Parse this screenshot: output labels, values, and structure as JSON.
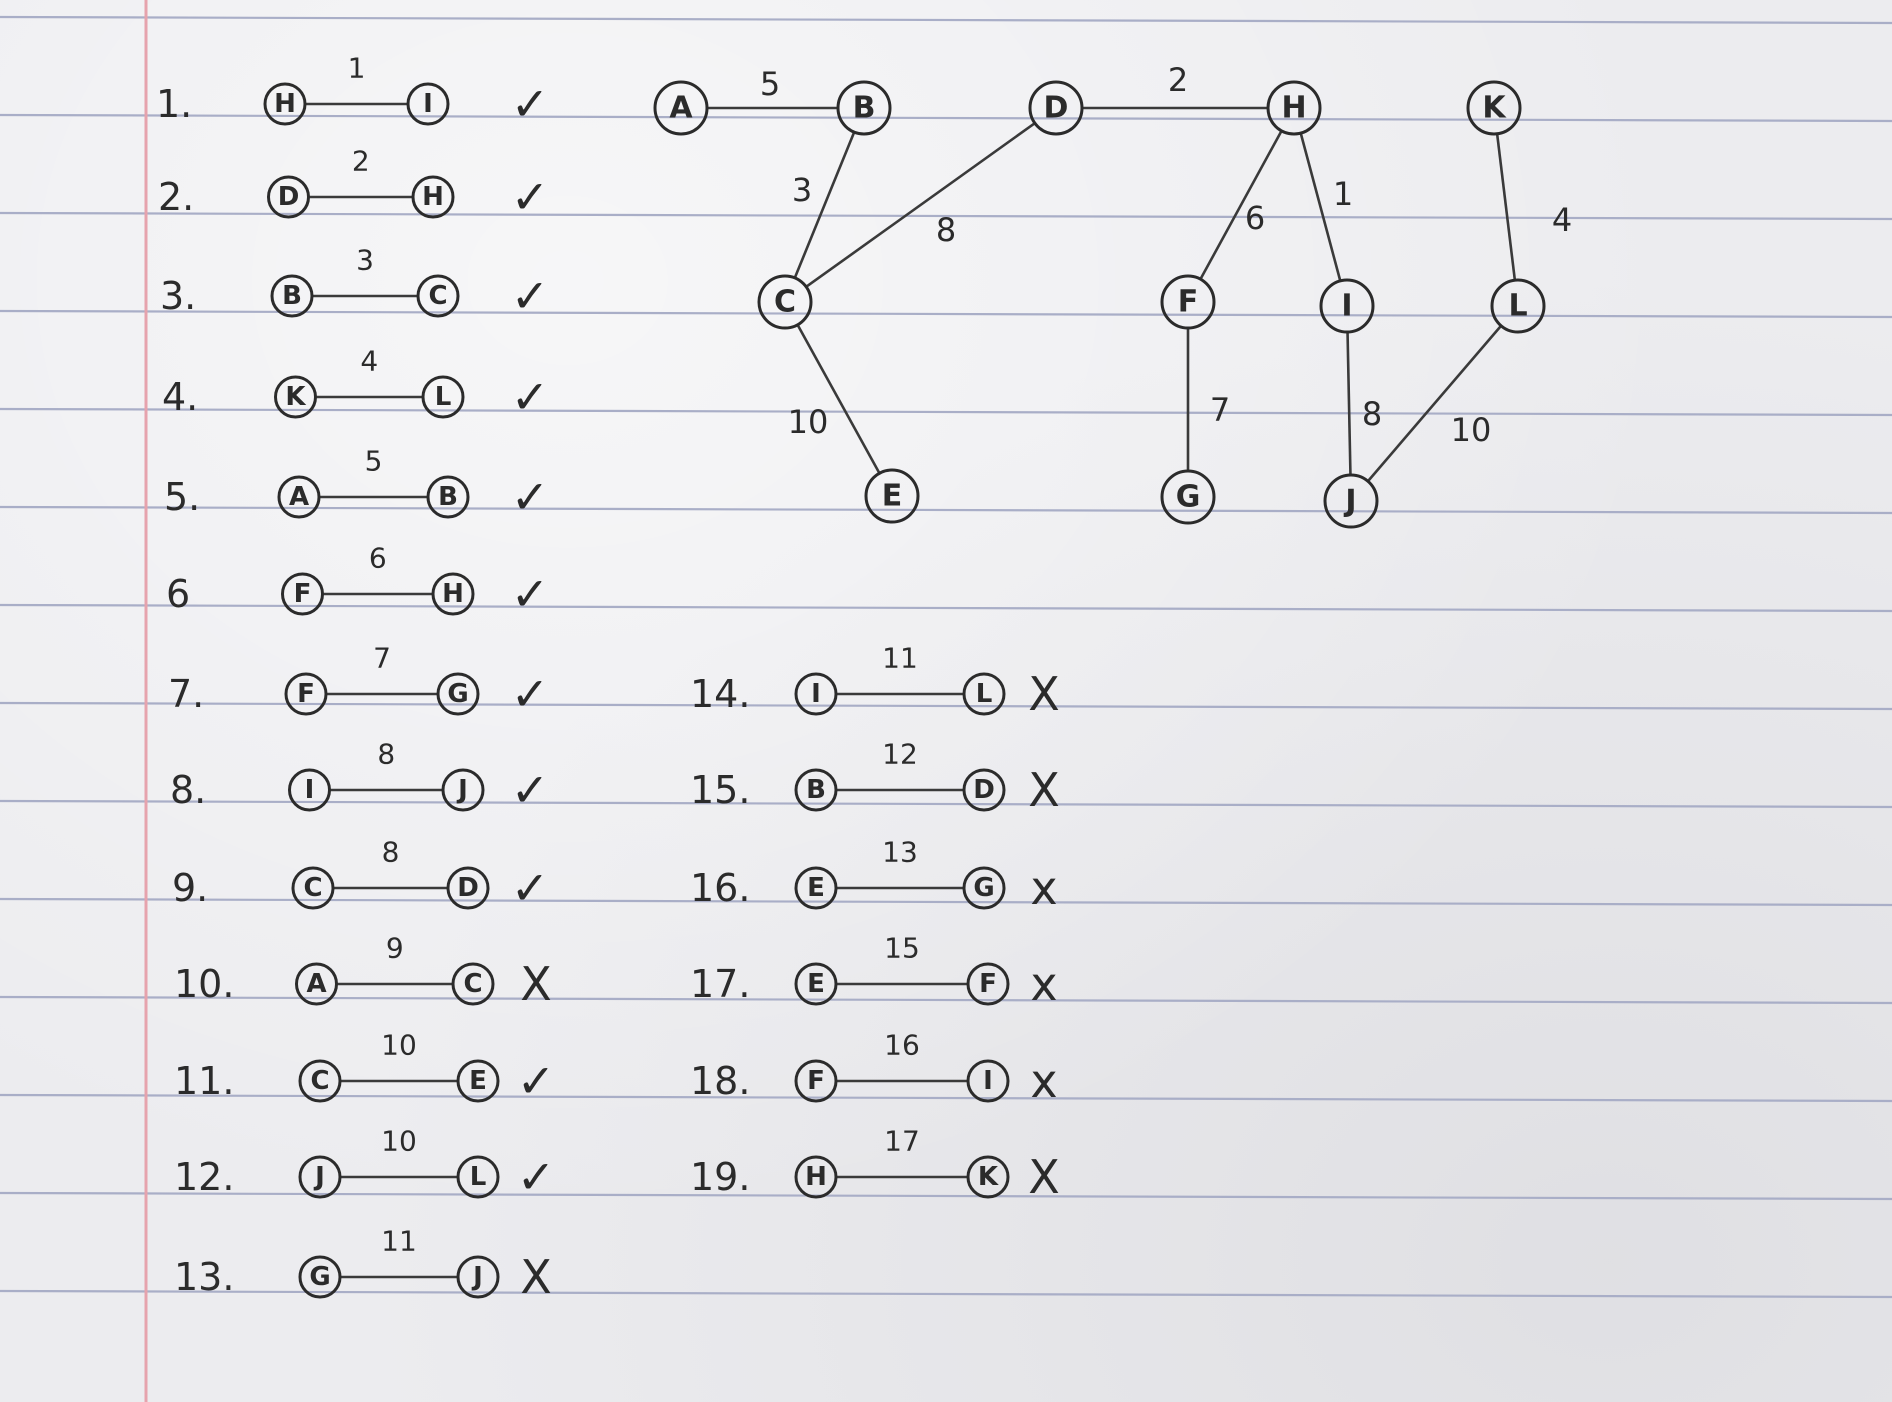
{
  "graph": {
    "nodes": [
      "A",
      "B",
      "C",
      "D",
      "E",
      "F",
      "G",
      "H",
      "I",
      "J",
      "K",
      "L"
    ],
    "edges": [
      {
        "from": "A",
        "to": "B",
        "weight": "5"
      },
      {
        "from": "B",
        "to": "C",
        "weight": "3"
      },
      {
        "from": "C",
        "to": "D",
        "weight": "8"
      },
      {
        "from": "D",
        "to": "H",
        "weight": "2"
      },
      {
        "from": "H",
        "to": "F",
        "weight": "6"
      },
      {
        "from": "H",
        "to": "I",
        "weight": "1"
      },
      {
        "from": "K",
        "to": "L",
        "weight": "4"
      },
      {
        "from": "C",
        "to": "E",
        "weight": "10"
      },
      {
        "from": "F",
        "to": "G",
        "weight": "7"
      },
      {
        "from": "I",
        "to": "J",
        "weight": "8"
      },
      {
        "from": "J",
        "to": "L",
        "weight": "10"
      }
    ]
  },
  "edge_list": [
    {
      "num": "1.",
      "from": "H",
      "to": "I",
      "weight": "1",
      "mark": "✓"
    },
    {
      "num": "2.",
      "from": "D",
      "to": "H",
      "weight": "2",
      "mark": "✓"
    },
    {
      "num": "3.",
      "from": "B",
      "to": "C",
      "weight": "3",
      "mark": "✓"
    },
    {
      "num": "4.",
      "from": "K",
      "to": "L",
      "weight": "4",
      "mark": "✓"
    },
    {
      "num": "5.",
      "from": "A",
      "to": "B",
      "weight": "5",
      "mark": "✓"
    },
    {
      "num": "6",
      "from": "F",
      "to": "H",
      "weight": "6",
      "mark": "✓"
    },
    {
      "num": "7.",
      "from": "F",
      "to": "G",
      "weight": "7",
      "mark": "✓"
    },
    {
      "num": "8.",
      "from": "I",
      "to": "J",
      "weight": "8",
      "mark": "✓"
    },
    {
      "num": "9.",
      "from": "C",
      "to": "D",
      "weight": "8",
      "mark": "✓"
    },
    {
      "num": "10.",
      "from": "A",
      "to": "C",
      "weight": "9",
      "mark": "X"
    },
    {
      "num": "11.",
      "from": "C",
      "to": "E",
      "weight": "10",
      "mark": "✓"
    },
    {
      "num": "12.",
      "from": "J",
      "to": "L",
      "weight": "10",
      "mark": "✓"
    },
    {
      "num": "13.",
      "from": "G",
      "to": "J",
      "weight": "11",
      "mark": "X"
    },
    {
      "num": "14.",
      "from": "I",
      "to": "L",
      "weight": "11",
      "mark": "X"
    },
    {
      "num": "15.",
      "from": "B",
      "to": "D",
      "weight": "12",
      "mark": "X"
    },
    {
      "num": "16.",
      "from": "E",
      "to": "G",
      "weight": "13",
      "mark": "x"
    },
    {
      "num": "17.",
      "from": "E",
      "to": "F",
      "weight": "15",
      "mark": "x"
    },
    {
      "num": "18.",
      "from": "F",
      "to": "I",
      "weight": "16",
      "mark": "x"
    },
    {
      "num": "19.",
      "from": "H",
      "to": "K",
      "weight": "17",
      "mark": "X"
    }
  ],
  "colors": {
    "paper": "#ececef",
    "rule_line": "#a9aec7",
    "margin_line": "#e6a3ad",
    "ink": "#2b2b2b"
  }
}
